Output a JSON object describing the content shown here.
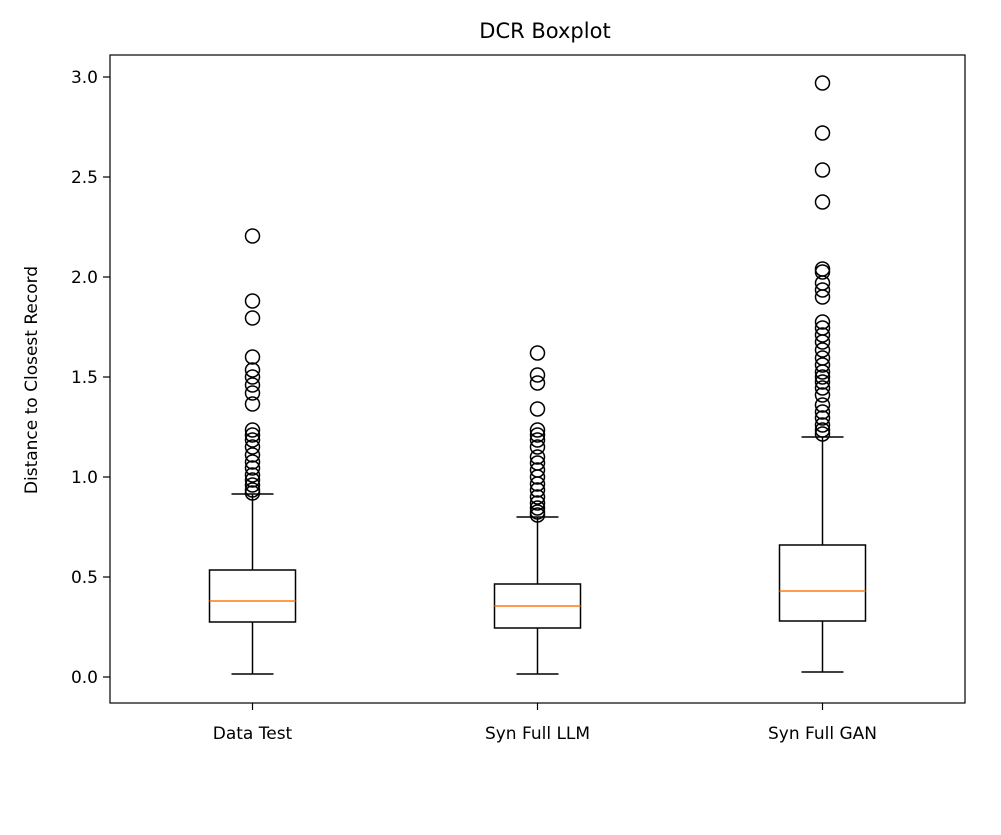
{
  "chart_data": {
    "type": "boxplot",
    "title": "DCR Boxplot",
    "xlabel": "",
    "ylabel": "Distance to Closest Record",
    "ylim": [
      -0.13,
      3.11
    ],
    "yticks": [
      "0.0",
      "0.5",
      "1.0",
      "1.5",
      "2.0",
      "2.5",
      "3.0"
    ],
    "grid": false,
    "colors": {
      "box": "#000000",
      "median": "#ff7f0e"
    },
    "categories": [
      "Data Test",
      "Syn Full LLM",
      "Syn Full GAN"
    ],
    "boxes": [
      {
        "whislo": 0.015,
        "q1": 0.275,
        "med": 0.38,
        "q3": 0.535,
        "whishi": 0.915,
        "fliers": [
          2.205,
          1.88,
          1.795,
          1.6,
          1.535,
          1.5,
          1.46,
          1.42,
          1.365,
          1.235,
          1.21,
          1.185,
          1.15,
          1.11,
          1.075,
          1.045,
          1.01,
          0.985,
          0.96,
          0.935,
          0.92
        ]
      },
      {
        "whislo": 0.015,
        "q1": 0.245,
        "med": 0.355,
        "q3": 0.465,
        "whishi": 0.8,
        "fliers": [
          1.62,
          1.51,
          1.47,
          1.34,
          1.235,
          1.21,
          1.185,
          1.15,
          1.1,
          1.07,
          1.035,
          1.0,
          0.965,
          0.935,
          0.9,
          0.87,
          0.845,
          0.825,
          0.81
        ]
      },
      {
        "whislo": 0.025,
        "q1": 0.28,
        "med": 0.43,
        "q3": 0.66,
        "whishi": 1.2,
        "fliers": [
          2.97,
          2.72,
          2.535,
          2.375,
          2.04,
          2.025,
          1.97,
          1.935,
          1.9,
          1.775,
          1.745,
          1.71,
          1.675,
          1.635,
          1.595,
          1.56,
          1.525,
          1.5,
          1.475,
          1.445,
          1.41,
          1.36,
          1.325,
          1.295,
          1.26,
          1.235,
          1.215
        ]
      }
    ]
  }
}
